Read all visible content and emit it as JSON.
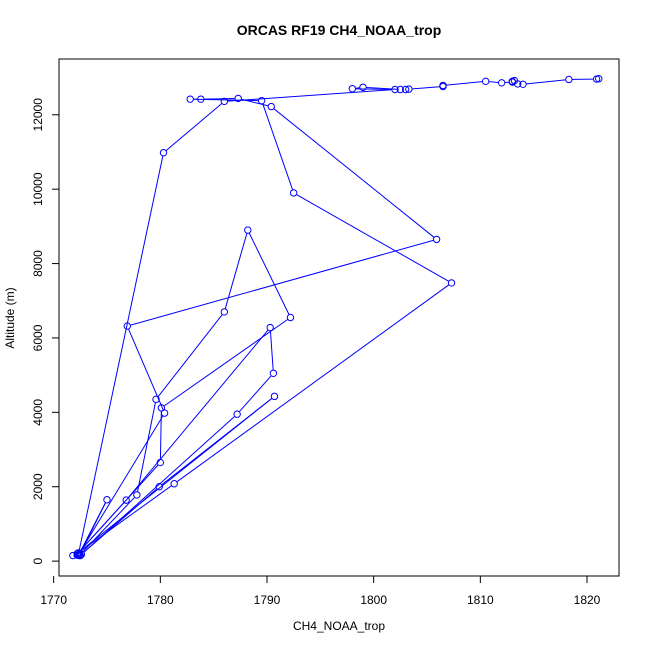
{
  "chart_data": {
    "type": "line",
    "title": "ORCAS RF19 CH4_NOAA_trop",
    "xlabel": "CH4_NOAA_trop",
    "ylabel": "Altitude (m)",
    "xlim": [
      1770.5,
      1823
    ],
    "ylim": [
      -400,
      13500
    ],
    "x_ticks": [
      1770,
      1780,
      1790,
      1800,
      1810,
      1820
    ],
    "y_ticks": [
      0,
      2000,
      4000,
      6000,
      8000,
      10000,
      12000
    ],
    "x_tick_labels": [
      "1770",
      "1780",
      "1790",
      "1800",
      "1810",
      "1820"
    ],
    "y_tick_labels": [
      "0",
      "2000",
      "4000",
      "6000",
      "8000",
      "10000",
      "12000"
    ],
    "grid": false,
    "legend": "none",
    "series": [
      {
        "color": "#0000ff",
        "marker": "open-circle",
        "points": [
          [
            1772.5,
            150
          ],
          [
            1772.2,
            160
          ],
          [
            1771.8,
            150
          ],
          [
            1772.4,
            200
          ],
          [
            1775.0,
            1650
          ],
          [
            1772.4,
            150
          ],
          [
            1777.8,
            1780
          ],
          [
            1779.6,
            4350
          ],
          [
            1786.0,
            6700
          ],
          [
            1788.2,
            8900
          ],
          [
            1792.2,
            6550
          ],
          [
            1780.1,
            4120
          ],
          [
            1780.0,
            2650
          ],
          [
            1772.3,
            220
          ],
          [
            1776.8,
            1640
          ],
          [
            1790.3,
            6280
          ],
          [
            1790.6,
            5050
          ],
          [
            1787.2,
            3950
          ],
          [
            1772.6,
            180
          ],
          [
            1779.9,
            2000
          ],
          [
            1790.7,
            4430
          ],
          [
            1772.2,
            200
          ],
          [
            1781.3,
            2080
          ],
          [
            1807.3,
            7480
          ],
          [
            1792.5,
            9900
          ],
          [
            1789.5,
            12380
          ],
          [
            1782.8,
            12420
          ],
          [
            1783.8,
            12420
          ],
          [
            1787.3,
            12440
          ],
          [
            1790.4,
            12220
          ],
          [
            1805.9,
            8650
          ],
          [
            1776.9,
            6320
          ],
          [
            1780.4,
            3980
          ],
          [
            1772.3,
            160
          ],
          [
            1780.3,
            10980
          ],
          [
            1786.0,
            12360
          ],
          [
            1802.0,
            12680
          ],
          [
            1798.0,
            12700
          ],
          [
            1799.0,
            12740
          ],
          [
            1802.5,
            12680
          ],
          [
            1803.0,
            12680
          ],
          [
            1803.3,
            12690
          ],
          [
            1806.5,
            12760
          ],
          [
            1806.5,
            12790
          ],
          [
            1810.5,
            12900
          ],
          [
            1812.0,
            12860
          ],
          [
            1813.0,
            12880
          ],
          [
            1813.2,
            12920
          ],
          [
            1813.0,
            12900
          ],
          [
            1813.5,
            12830
          ],
          [
            1814.0,
            12820
          ],
          [
            1818.3,
            12950
          ],
          [
            1820.9,
            12960
          ],
          [
            1821.1,
            12970
          ]
        ]
      }
    ]
  }
}
